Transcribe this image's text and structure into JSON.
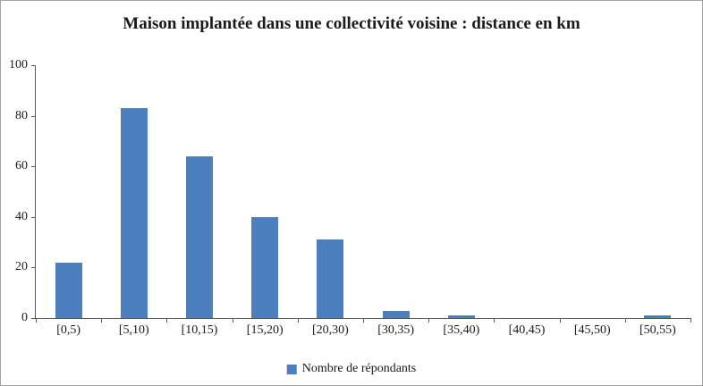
{
  "chart_data": {
    "type": "bar",
    "title": "Maison implantée dans une collectivité voisine : distance en km",
    "categories": [
      "[0,5)",
      "[5,10)",
      "[10,15)",
      "[15,20)",
      "[20,30)",
      "[30,35)",
      "[35,40)",
      "[40,45)",
      "[45,50)",
      "[50,55)"
    ],
    "values": [
      22,
      83,
      64,
      40,
      31,
      3,
      1,
      0,
      0,
      1
    ],
    "legend": "Nombre de répondants",
    "xlabel": "",
    "ylabel": "",
    "ylim": [
      0,
      100
    ],
    "yticks": [
      0,
      20,
      40,
      60,
      80,
      100
    ],
    "bar_color": "#4c7fbe",
    "grid": false,
    "legend_position": "bottom"
  }
}
